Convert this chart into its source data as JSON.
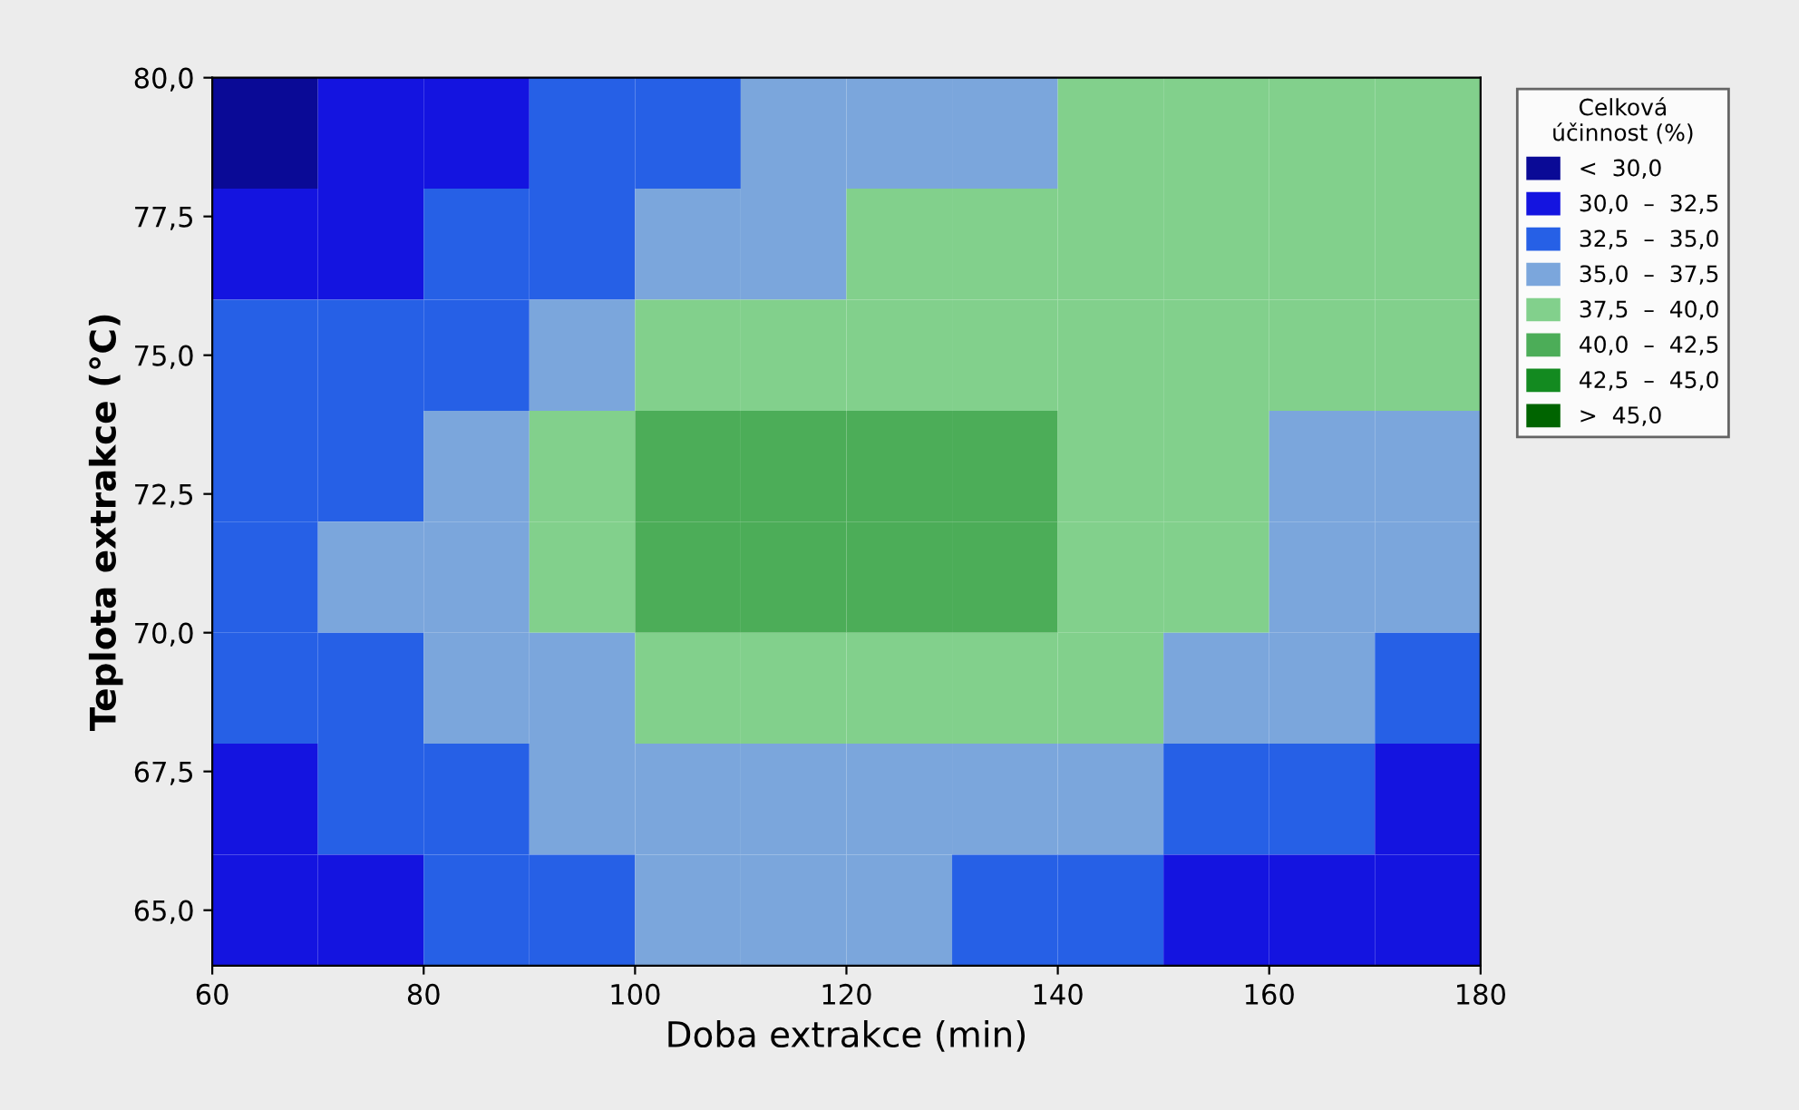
{
  "chart_data": {
    "type": "heatmap",
    "xlabel": "Doba extrakce (min)",
    "ylabel": "Teplota extrakce (°C)",
    "clabel": "Celková\núčinnost (%)",
    "x": [
      65,
      75,
      85,
      95,
      105,
      115,
      125,
      135,
      145,
      155,
      165,
      175
    ],
    "y": [
      79,
      77,
      75,
      73,
      71,
      69,
      67,
      65
    ],
    "cells": [
      [
        28.75,
        31.25,
        31.25,
        33.75,
        33.75,
        36.25,
        36.25,
        36.25,
        38.75,
        38.75,
        38.75,
        38.75
      ],
      [
        31.25,
        31.25,
        33.75,
        33.75,
        36.25,
        36.25,
        38.75,
        38.75,
        38.75,
        38.75,
        38.75,
        38.75
      ],
      [
        33.75,
        33.75,
        33.75,
        36.25,
        38.75,
        38.75,
        38.75,
        38.75,
        38.75,
        38.75,
        38.75,
        38.75
      ],
      [
        33.75,
        33.75,
        36.25,
        38.75,
        41.25,
        41.25,
        41.25,
        41.25,
        38.75,
        38.75,
        36.25,
        36.25
      ],
      [
        33.75,
        36.25,
        36.25,
        38.75,
        41.25,
        41.25,
        41.25,
        41.25,
        38.75,
        38.75,
        36.25,
        36.25
      ],
      [
        33.75,
        33.75,
        36.25,
        36.25,
        38.75,
        38.75,
        38.75,
        38.75,
        38.75,
        36.25,
        36.25,
        33.75
      ],
      [
        31.25,
        33.75,
        33.75,
        36.25,
        36.25,
        36.25,
        36.25,
        36.25,
        36.25,
        33.75,
        33.75,
        31.25
      ],
      [
        31.25,
        31.25,
        33.75,
        33.75,
        36.25,
        36.25,
        36.25,
        33.75,
        33.75,
        31.25,
        31.25,
        31.25
      ]
    ],
    "colors": [
      "#0a0a96",
      "#1414e0",
      "#2660e6",
      "#7ba6dc",
      "#82d08c",
      "#4cad58",
      "#138a20",
      "#006400"
    ],
    "clim": [
      27.5,
      47.5
    ],
    "cticks": [
      {
        "value": 28.75,
        "label": "<  30,0"
      },
      {
        "value": 31.25,
        "label": "30,0  –  32,5"
      },
      {
        "value": 33.75,
        "label": "32,5  –  35,0"
      },
      {
        "value": 36.25,
        "label": "35,0  –  37,5"
      },
      {
        "value": 38.75,
        "label": "37,5  –  40,0"
      },
      {
        "value": 41.25,
        "label": "40,0  –  42,5"
      },
      {
        "value": 43.75,
        "label": "42,5  –  45,0"
      },
      {
        "value": 46.25,
        "label": ">  45,0"
      }
    ],
    "xlim": [
      60,
      180
    ],
    "xticks": [
      60,
      80,
      100,
      120,
      140,
      160,
      180
    ],
    "ylim": [
      64,
      80
    ],
    "yticks": [
      {
        "value": 65,
        "label": "65,0"
      },
      {
        "value": 67.5,
        "label": "67,5"
      },
      {
        "value": 70,
        "label": "70,0"
      },
      {
        "value": 72.5,
        "label": "72,5"
      },
      {
        "value": 75,
        "label": "75,0"
      },
      {
        "value": 77.5,
        "label": "77,5"
      },
      {
        "value": 80,
        "label": "80,0"
      }
    ],
    "grid": false
  }
}
